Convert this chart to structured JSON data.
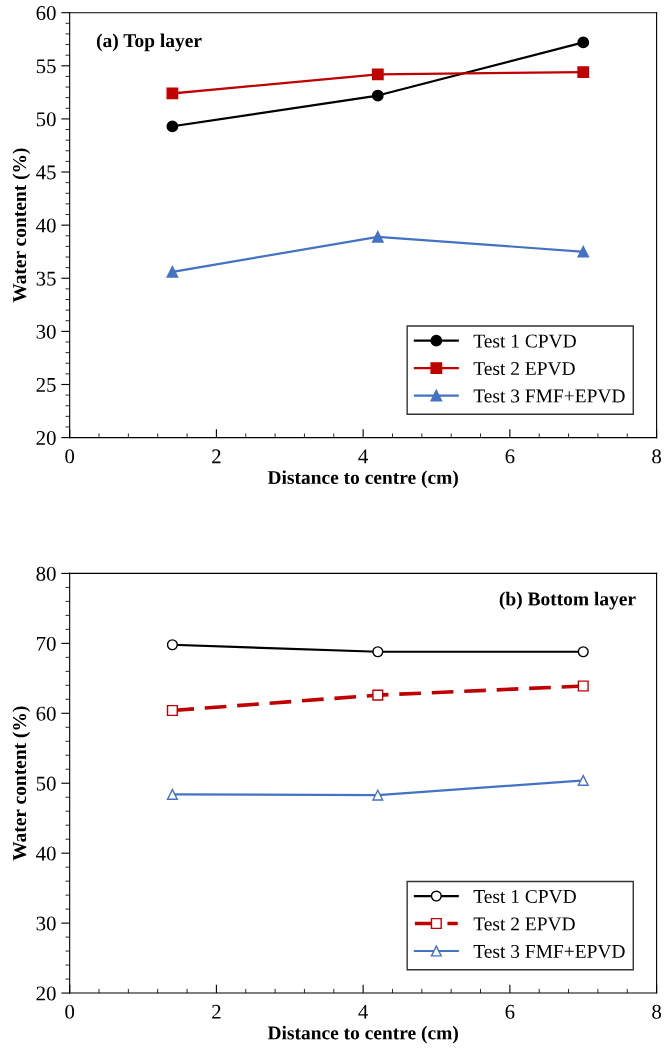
{
  "chart_data": [
    {
      "type": "line",
      "xlabel": "Distance to centre (cm)",
      "ylabel": "Water content (%)",
      "annotations": [
        "(a) Top layer"
      ],
      "x": [
        1.4,
        4.2,
        7
      ],
      "xlim": [
        0,
        8
      ],
      "xticks": [
        0,
        2,
        4,
        6,
        8
      ],
      "ylim": [
        20,
        60
      ],
      "yticks": [
        20,
        25,
        30,
        35,
        40,
        45,
        50,
        55,
        60
      ],
      "grid": false,
      "legend": "bottom right",
      "series": [
        {
          "name": "Test 1 CPVD",
          "color": "#000000",
          "marker": "circle",
          "line_style": "solid",
          "values": [
            49.3,
            52.2,
            57.2
          ]
        },
        {
          "name": "Test 2 EPVD",
          "color": "#c00000",
          "marker": "square",
          "line_style": "solid",
          "values": [
            52.4,
            54.2,
            54.4
          ]
        },
        {
          "name": "Test 3 FMF+EPVD",
          "color": "#4472c4",
          "marker": "triangle",
          "line_style": "solid",
          "values": [
            35.6,
            38.9,
            37.5
          ]
        }
      ]
    },
    {
      "type": "line",
      "xlabel": "Distance to centre (cm)",
      "ylabel": "Water content (%)",
      "annotations": [
        "(b) Bottom layer"
      ],
      "x": [
        1.4,
        4.2,
        7
      ],
      "xlim": [
        0,
        8
      ],
      "xticks": [
        0,
        2,
        4,
        6,
        8
      ],
      "ylim": [
        20,
        80
      ],
      "yticks": [
        20,
        30,
        40,
        50,
        60,
        70,
        80
      ],
      "grid": false,
      "legend": "bottom right",
      "series": [
        {
          "name": "Test 1 CPVD",
          "color": "#000000",
          "marker": "circle",
          "line_style": "solid",
          "values": [
            69.8,
            68.8,
            68.8
          ]
        },
        {
          "name": "Test 2 EPVD",
          "color": "#c00000",
          "marker": "square",
          "line_style": "dashed",
          "values": [
            60.4,
            62.6,
            63.9
          ]
        },
        {
          "name": "Test 3 FMF+EPVD",
          "color": "#4472c4",
          "marker": "triangle",
          "line_style": "solid",
          "values": [
            48.4,
            48.3,
            50.4
          ]
        }
      ]
    }
  ]
}
